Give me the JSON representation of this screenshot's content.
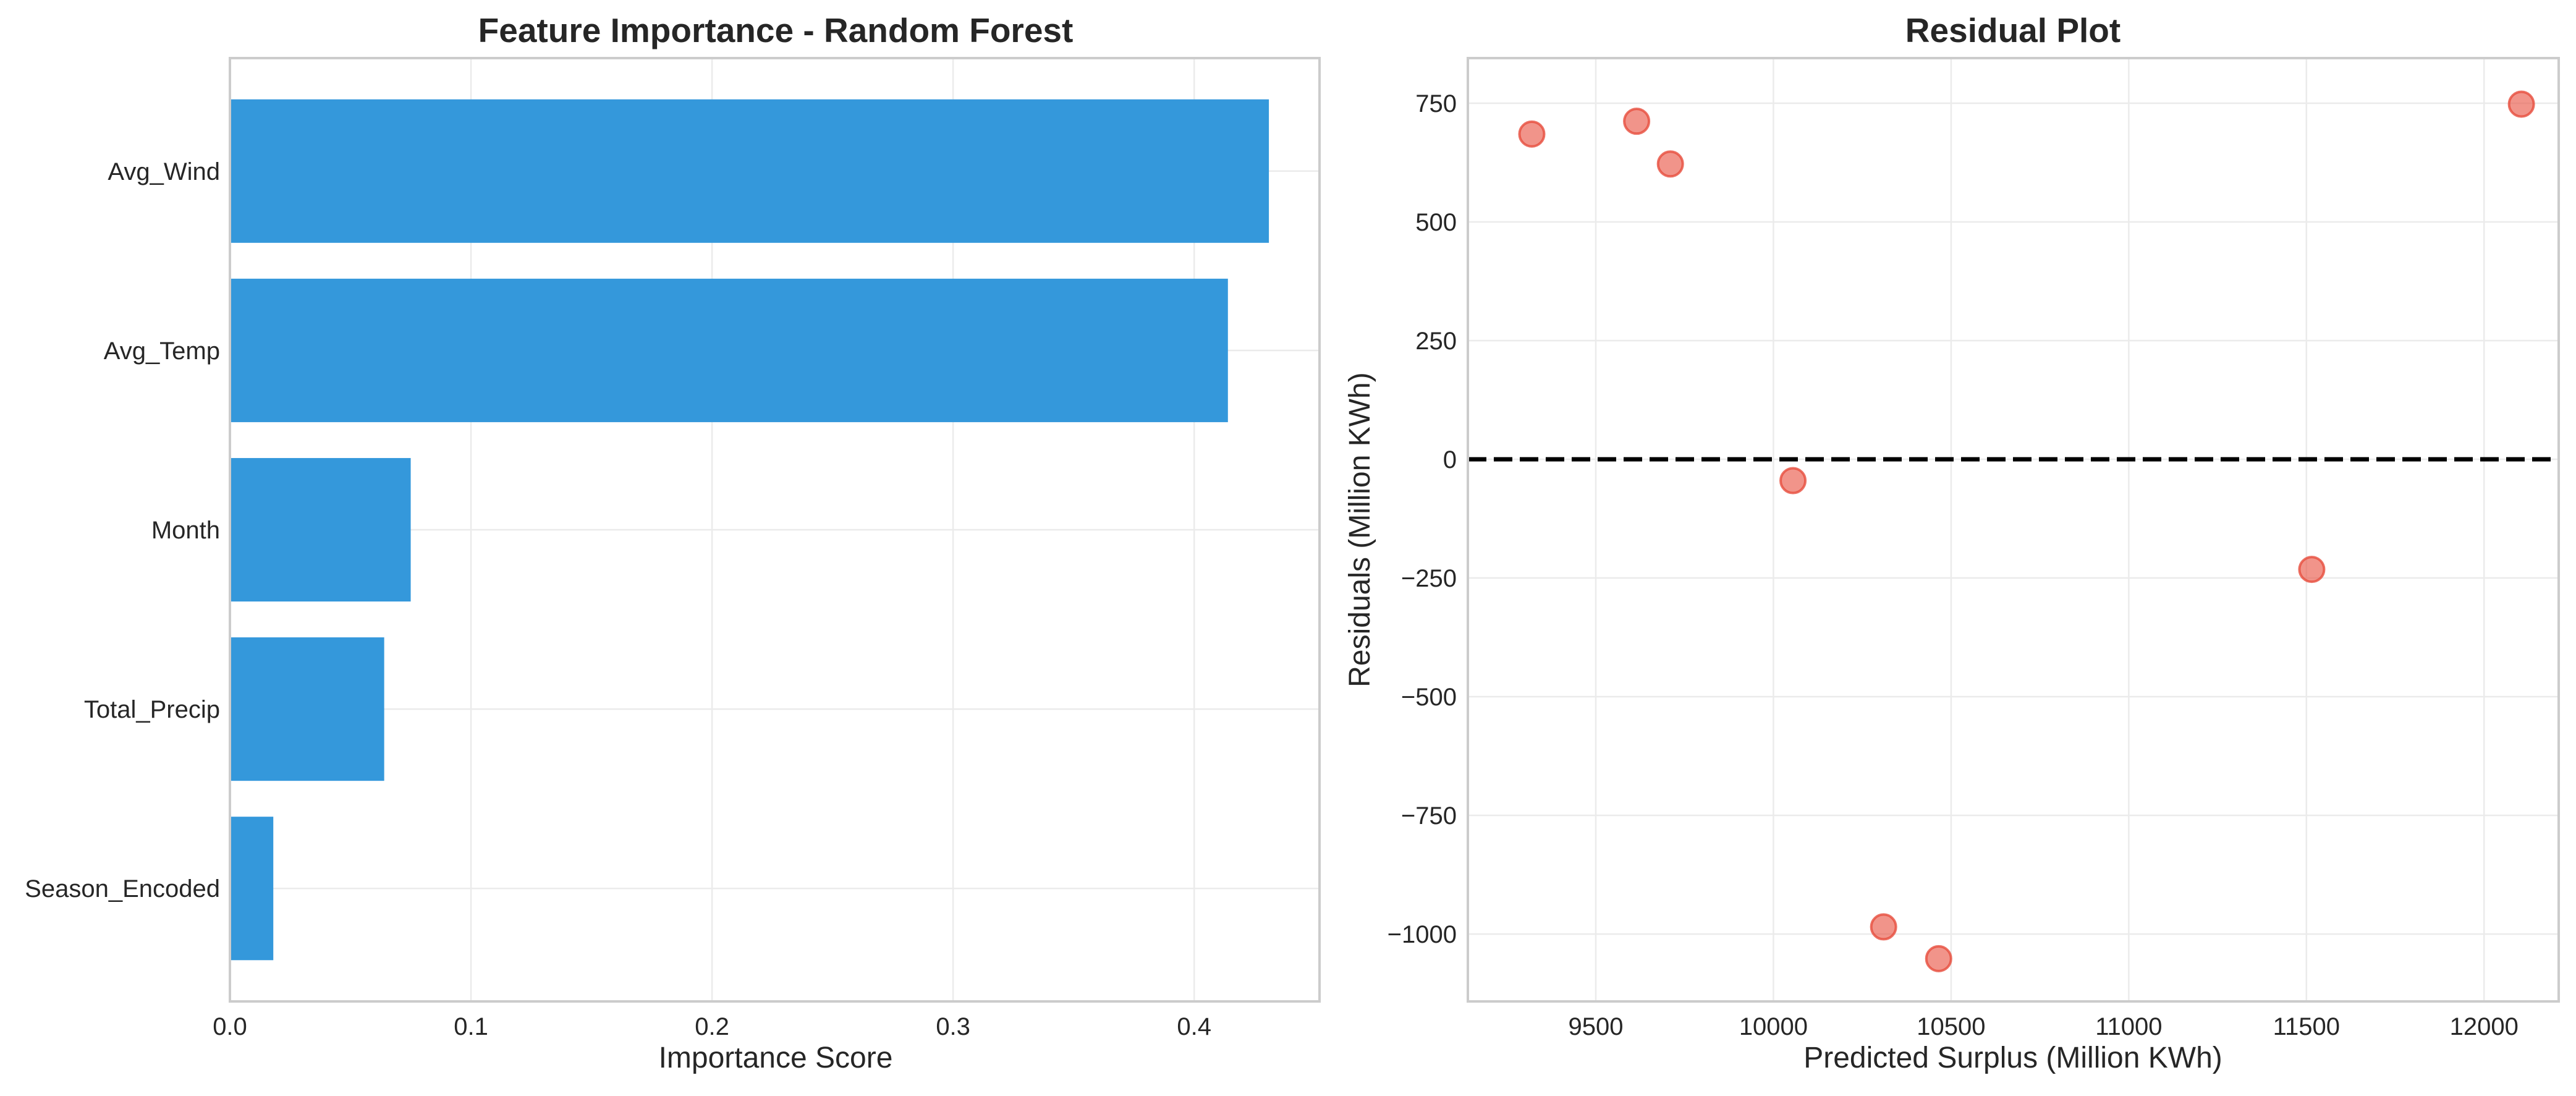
{
  "chart_data": [
    {
      "type": "bar",
      "orientation": "horizontal",
      "title": "Feature Importance - Random Forest",
      "xlabel": "Importance Score",
      "ylabel": "",
      "categories": [
        "Avg_Wind",
        "Avg_Temp",
        "Month",
        "Total_Precip",
        "Season_Encoded"
      ],
      "values": [
        0.431,
        0.414,
        0.075,
        0.064,
        0.018
      ],
      "xlim": [
        0,
        0.452
      ],
      "xticks": [
        0.0,
        0.1,
        0.2,
        0.3,
        0.4
      ],
      "xtick_labels": [
        "0.0",
        "0.1",
        "0.2",
        "0.3",
        "0.4"
      ],
      "bar_color": "#3498db",
      "grid": true,
      "legend": "none"
    },
    {
      "type": "scatter",
      "title": "Residual Plot",
      "xlabel": "Predicted Surplus (Million KWh)",
      "ylabel": "Residuals (Million KWh)",
      "points": [
        {
          "x": 9320,
          "y": 685
        },
        {
          "x": 9615,
          "y": 712
        },
        {
          "x": 9710,
          "y": 622
        },
        {
          "x": 10055,
          "y": -45
        },
        {
          "x": 10310,
          "y": -985
        },
        {
          "x": 10465,
          "y": -1052
        },
        {
          "x": 11515,
          "y": -232
        },
        {
          "x": 12105,
          "y": 748
        }
      ],
      "xlim": [
        9140,
        12210
      ],
      "ylim": [
        -1142,
        845
      ],
      "xticks": [
        9500,
        10000,
        10500,
        11000,
        11500,
        12000
      ],
      "xtick_labels": [
        "9500",
        "10000",
        "10500",
        "11000",
        "11500",
        "12000"
      ],
      "yticks": [
        750,
        500,
        250,
        0,
        -250,
        -500,
        -750,
        -1000
      ],
      "ytick_labels": [
        "750",
        "500",
        "250",
        "0",
        "−250",
        "−500",
        "−750",
        "−1000"
      ],
      "reference_line": {
        "y": 0,
        "style": "dashed",
        "color": "#000000"
      },
      "point_color": "#e74c3c",
      "grid": true,
      "legend": "none"
    }
  ]
}
